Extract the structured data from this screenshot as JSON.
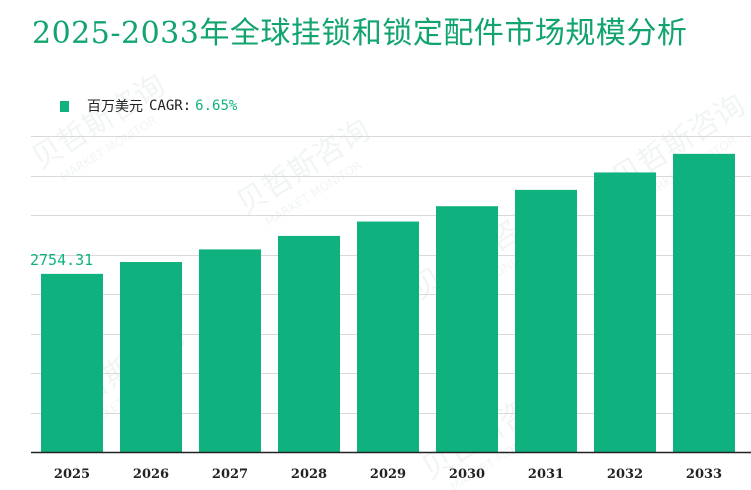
{
  "title": "2025-2033年全球挂锁和锁定配件市场规模分析",
  "legend": {
    "unit": "百万美元",
    "cagr_label": "CAGR:",
    "cagr_value": "6.65%"
  },
  "watermark": {
    "brand": "贝哲斯咨询",
    "sub": "MARKET MONITOR"
  },
  "colors": {
    "accent": "#0fb27f",
    "title": "#12a46e",
    "grid": "#d9d9d9",
    "axis": "#222222"
  },
  "chart_data": {
    "type": "bar",
    "title": "2025-2033年全球挂锁和锁定配件市场规模分析",
    "xlabel": "",
    "ylabel": "",
    "unit": "百万美元",
    "categories": [
      "2025",
      "2026",
      "2027",
      "2028",
      "2029",
      "2030",
      "2031",
      "2032",
      "2033"
    ],
    "values": [
      2754.31,
      2937.5,
      3132.8,
      3341.1,
      3563.3,
      3800.3,
      4053.0,
      4322.5,
      4610.0
    ],
    "data_labels": [
      "2754.31",
      "",
      "",
      "",
      "",
      "",
      "",
      "",
      ""
    ],
    "ylim": [
      0,
      4886
    ],
    "grid": true,
    "legend_position": "top-left"
  }
}
